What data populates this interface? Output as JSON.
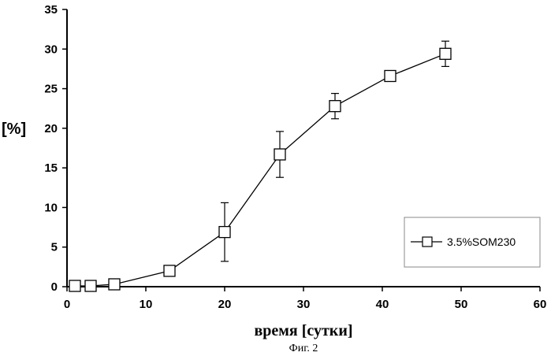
{
  "chart_data": {
    "type": "line",
    "ylabel": "[%]",
    "xlabel": "время [сутки]",
    "caption": "Фиг. 2",
    "xlim": [
      0,
      60
    ],
    "ylim": [
      0,
      35
    ],
    "xticks": [
      0,
      10,
      20,
      30,
      40,
      50,
      60
    ],
    "yticks": [
      0,
      5,
      10,
      15,
      20,
      25,
      30,
      35
    ],
    "grid": false,
    "legend_position": "right",
    "series": [
      {
        "name": "3.5%SOM230",
        "marker": "square",
        "color": "#000000",
        "x": [
          1,
          3,
          6,
          13,
          20,
          27,
          34,
          41,
          48
        ],
        "y": [
          0.1,
          0.1,
          0.3,
          2.0,
          6.9,
          16.7,
          22.8,
          26.6,
          29.4
        ],
        "yerr": [
          0.05,
          0.05,
          0.2,
          0.5,
          3.7,
          2.9,
          1.6,
          0.6,
          1.6
        ]
      }
    ]
  }
}
